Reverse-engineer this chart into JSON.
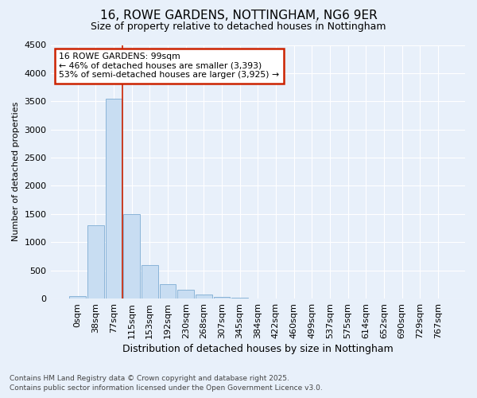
{
  "title1": "16, ROWE GARDENS, NOTTINGHAM, NG6 9ER",
  "title2": "Size of property relative to detached houses in Nottingham",
  "xlabel": "Distribution of detached houses by size in Nottingham",
  "ylabel": "Number of detached properties",
  "categories": [
    "0sqm",
    "38sqm",
    "77sqm",
    "115sqm",
    "153sqm",
    "192sqm",
    "230sqm",
    "268sqm",
    "307sqm",
    "345sqm",
    "384sqm",
    "422sqm",
    "460sqm",
    "499sqm",
    "537sqm",
    "575sqm",
    "614sqm",
    "652sqm",
    "690sqm",
    "729sqm",
    "767sqm"
  ],
  "values": [
    50,
    1300,
    3540,
    1500,
    600,
    250,
    150,
    75,
    30,
    10,
    5,
    0,
    0,
    0,
    0,
    0,
    0,
    0,
    0,
    0,
    0
  ],
  "bar_color": "#c8ddf2",
  "bar_edge_color": "#8ab4d8",
  "vline_x_index": 2.5,
  "vline_color": "#cc2200",
  "annotation_text": "16 ROWE GARDENS: 99sqm\n← 46% of detached houses are smaller (3,393)\n53% of semi-detached houses are larger (3,925) →",
  "annotation_box_color": "#ffffff",
  "annotation_box_edge": "#cc2200",
  "footnote1": "Contains HM Land Registry data © Crown copyright and database right 2025.",
  "footnote2": "Contains public sector information licensed under the Open Government Licence v3.0.",
  "ylim": [
    0,
    4500
  ],
  "yticks": [
    0,
    500,
    1000,
    1500,
    2000,
    2500,
    3000,
    3500,
    4000,
    4500
  ],
  "bg_color": "#e8f0fa",
  "plot_bg_color": "#e8f0fa",
  "grid_color": "#ffffff",
  "title1_fontsize": 11,
  "title2_fontsize": 9,
  "xlabel_fontsize": 9,
  "ylabel_fontsize": 8,
  "tick_fontsize": 8,
  "footnote_fontsize": 6.5
}
